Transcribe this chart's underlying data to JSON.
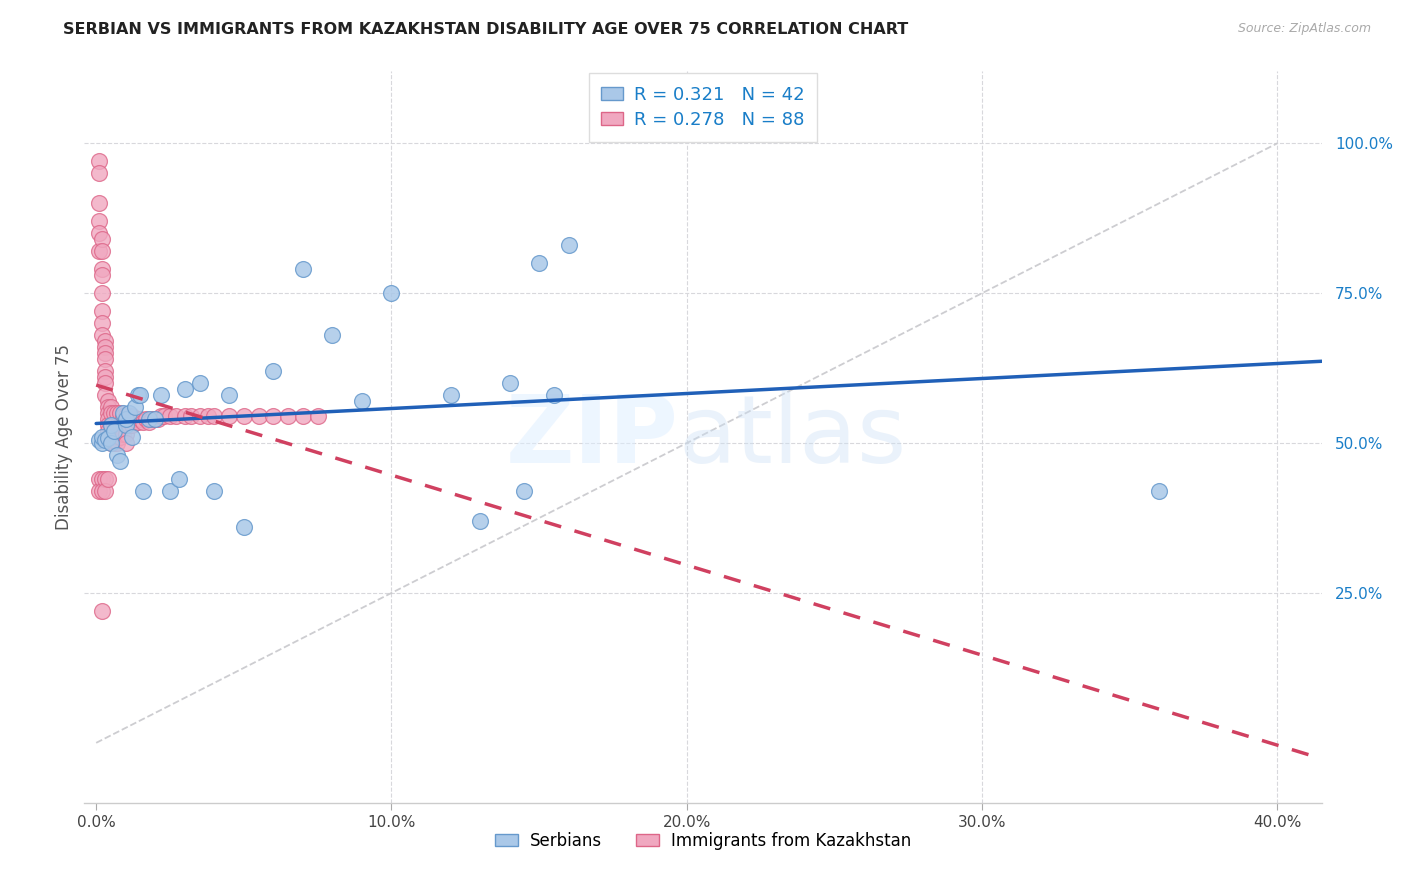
{
  "title": "SERBIAN VS IMMIGRANTS FROM KAZAKHSTAN DISABILITY AGE OVER 75 CORRELATION CHART",
  "source": "Source: ZipAtlas.com",
  "ylabel": "Disability Age Over 75",
  "xticks": [
    0.0,
    0.1,
    0.2,
    0.3,
    0.4
  ],
  "xtick_labels": [
    "0.0%",
    "10.0%",
    "20.0%",
    "30.0%",
    "40.0%"
  ],
  "yticks": [
    0.25,
    0.5,
    0.75,
    1.0
  ],
  "ytick_labels": [
    "25.0%",
    "50.0%",
    "75.0%",
    "100.0%"
  ],
  "xlim": [
    -0.004,
    0.415
  ],
  "ylim": [
    -0.1,
    1.12
  ],
  "serbian_R": 0.321,
  "serbian_N": 42,
  "kazakh_R": 0.278,
  "kazakh_N": 88,
  "serbian_color": "#aac8e8",
  "serbian_edge": "#6699cc",
  "kazakh_color": "#f0a8c0",
  "kazakh_edge": "#dd6688",
  "line_serbian_color": "#2060b8",
  "line_kazakh_color": "#d04060",
  "diag_color": "#c8c8cc",
  "grid_color": "#d8d8dc",
  "axis_label_color": "#1a7ec8",
  "title_color": "#222222",
  "source_color": "#aaaaaa",
  "legend_serbian_label": "Serbians",
  "legend_kazakh_label": "Immigrants from Kazakhstan",
  "serbian_x": [
    0.001,
    0.002,
    0.002,
    0.003,
    0.004,
    0.005,
    0.005,
    0.006,
    0.007,
    0.008,
    0.009,
    0.01,
    0.01,
    0.011,
    0.012,
    0.013,
    0.014,
    0.015,
    0.016,
    0.018,
    0.02,
    0.022,
    0.025,
    0.028,
    0.03,
    0.035,
    0.04,
    0.045,
    0.05,
    0.06,
    0.07,
    0.08,
    0.09,
    0.1,
    0.12,
    0.13,
    0.14,
    0.145,
    0.15,
    0.155,
    0.16,
    0.36
  ],
  "serbian_y": [
    0.505,
    0.5,
    0.51,
    0.505,
    0.508,
    0.5,
    0.53,
    0.52,
    0.48,
    0.47,
    0.55,
    0.53,
    0.54,
    0.55,
    0.51,
    0.56,
    0.58,
    0.58,
    0.42,
    0.54,
    0.54,
    0.58,
    0.42,
    0.44,
    0.59,
    0.6,
    0.42,
    0.58,
    0.36,
    0.62,
    0.79,
    0.68,
    0.57,
    0.75,
    0.58,
    0.37,
    0.6,
    0.42,
    0.8,
    0.58,
    0.83,
    0.42
  ],
  "kazakh_x": [
    0.001,
    0.001,
    0.001,
    0.001,
    0.001,
    0.001,
    0.002,
    0.002,
    0.002,
    0.002,
    0.002,
    0.002,
    0.002,
    0.002,
    0.003,
    0.003,
    0.003,
    0.003,
    0.003,
    0.003,
    0.003,
    0.003,
    0.004,
    0.004,
    0.004,
    0.004,
    0.004,
    0.004,
    0.005,
    0.005,
    0.005,
    0.005,
    0.005,
    0.006,
    0.006,
    0.006,
    0.006,
    0.007,
    0.007,
    0.007,
    0.007,
    0.008,
    0.008,
    0.008,
    0.009,
    0.009,
    0.009,
    0.01,
    0.01,
    0.01,
    0.01,
    0.011,
    0.011,
    0.012,
    0.012,
    0.013,
    0.014,
    0.015,
    0.016,
    0.017,
    0.018,
    0.019,
    0.02,
    0.021,
    0.022,
    0.023,
    0.025,
    0.027,
    0.03,
    0.032,
    0.035,
    0.038,
    0.04,
    0.045,
    0.05,
    0.055,
    0.06,
    0.065,
    0.07,
    0.075,
    0.001,
    0.001,
    0.002,
    0.002,
    0.003,
    0.003,
    0.004,
    0.002
  ],
  "kazakh_y": [
    0.97,
    0.95,
    0.9,
    0.87,
    0.85,
    0.82,
    0.84,
    0.82,
    0.79,
    0.78,
    0.75,
    0.72,
    0.7,
    0.68,
    0.67,
    0.66,
    0.65,
    0.64,
    0.62,
    0.61,
    0.6,
    0.58,
    0.57,
    0.56,
    0.55,
    0.54,
    0.53,
    0.52,
    0.56,
    0.55,
    0.53,
    0.51,
    0.5,
    0.55,
    0.53,
    0.51,
    0.5,
    0.55,
    0.53,
    0.51,
    0.5,
    0.55,
    0.53,
    0.51,
    0.545,
    0.53,
    0.515,
    0.545,
    0.53,
    0.515,
    0.5,
    0.545,
    0.53,
    0.545,
    0.53,
    0.54,
    0.535,
    0.54,
    0.535,
    0.54,
    0.535,
    0.54,
    0.54,
    0.54,
    0.545,
    0.545,
    0.545,
    0.545,
    0.545,
    0.545,
    0.545,
    0.545,
    0.545,
    0.545,
    0.545,
    0.545,
    0.545,
    0.545,
    0.545,
    0.545,
    0.44,
    0.42,
    0.44,
    0.42,
    0.44,
    0.42,
    0.44,
    0.22
  ]
}
